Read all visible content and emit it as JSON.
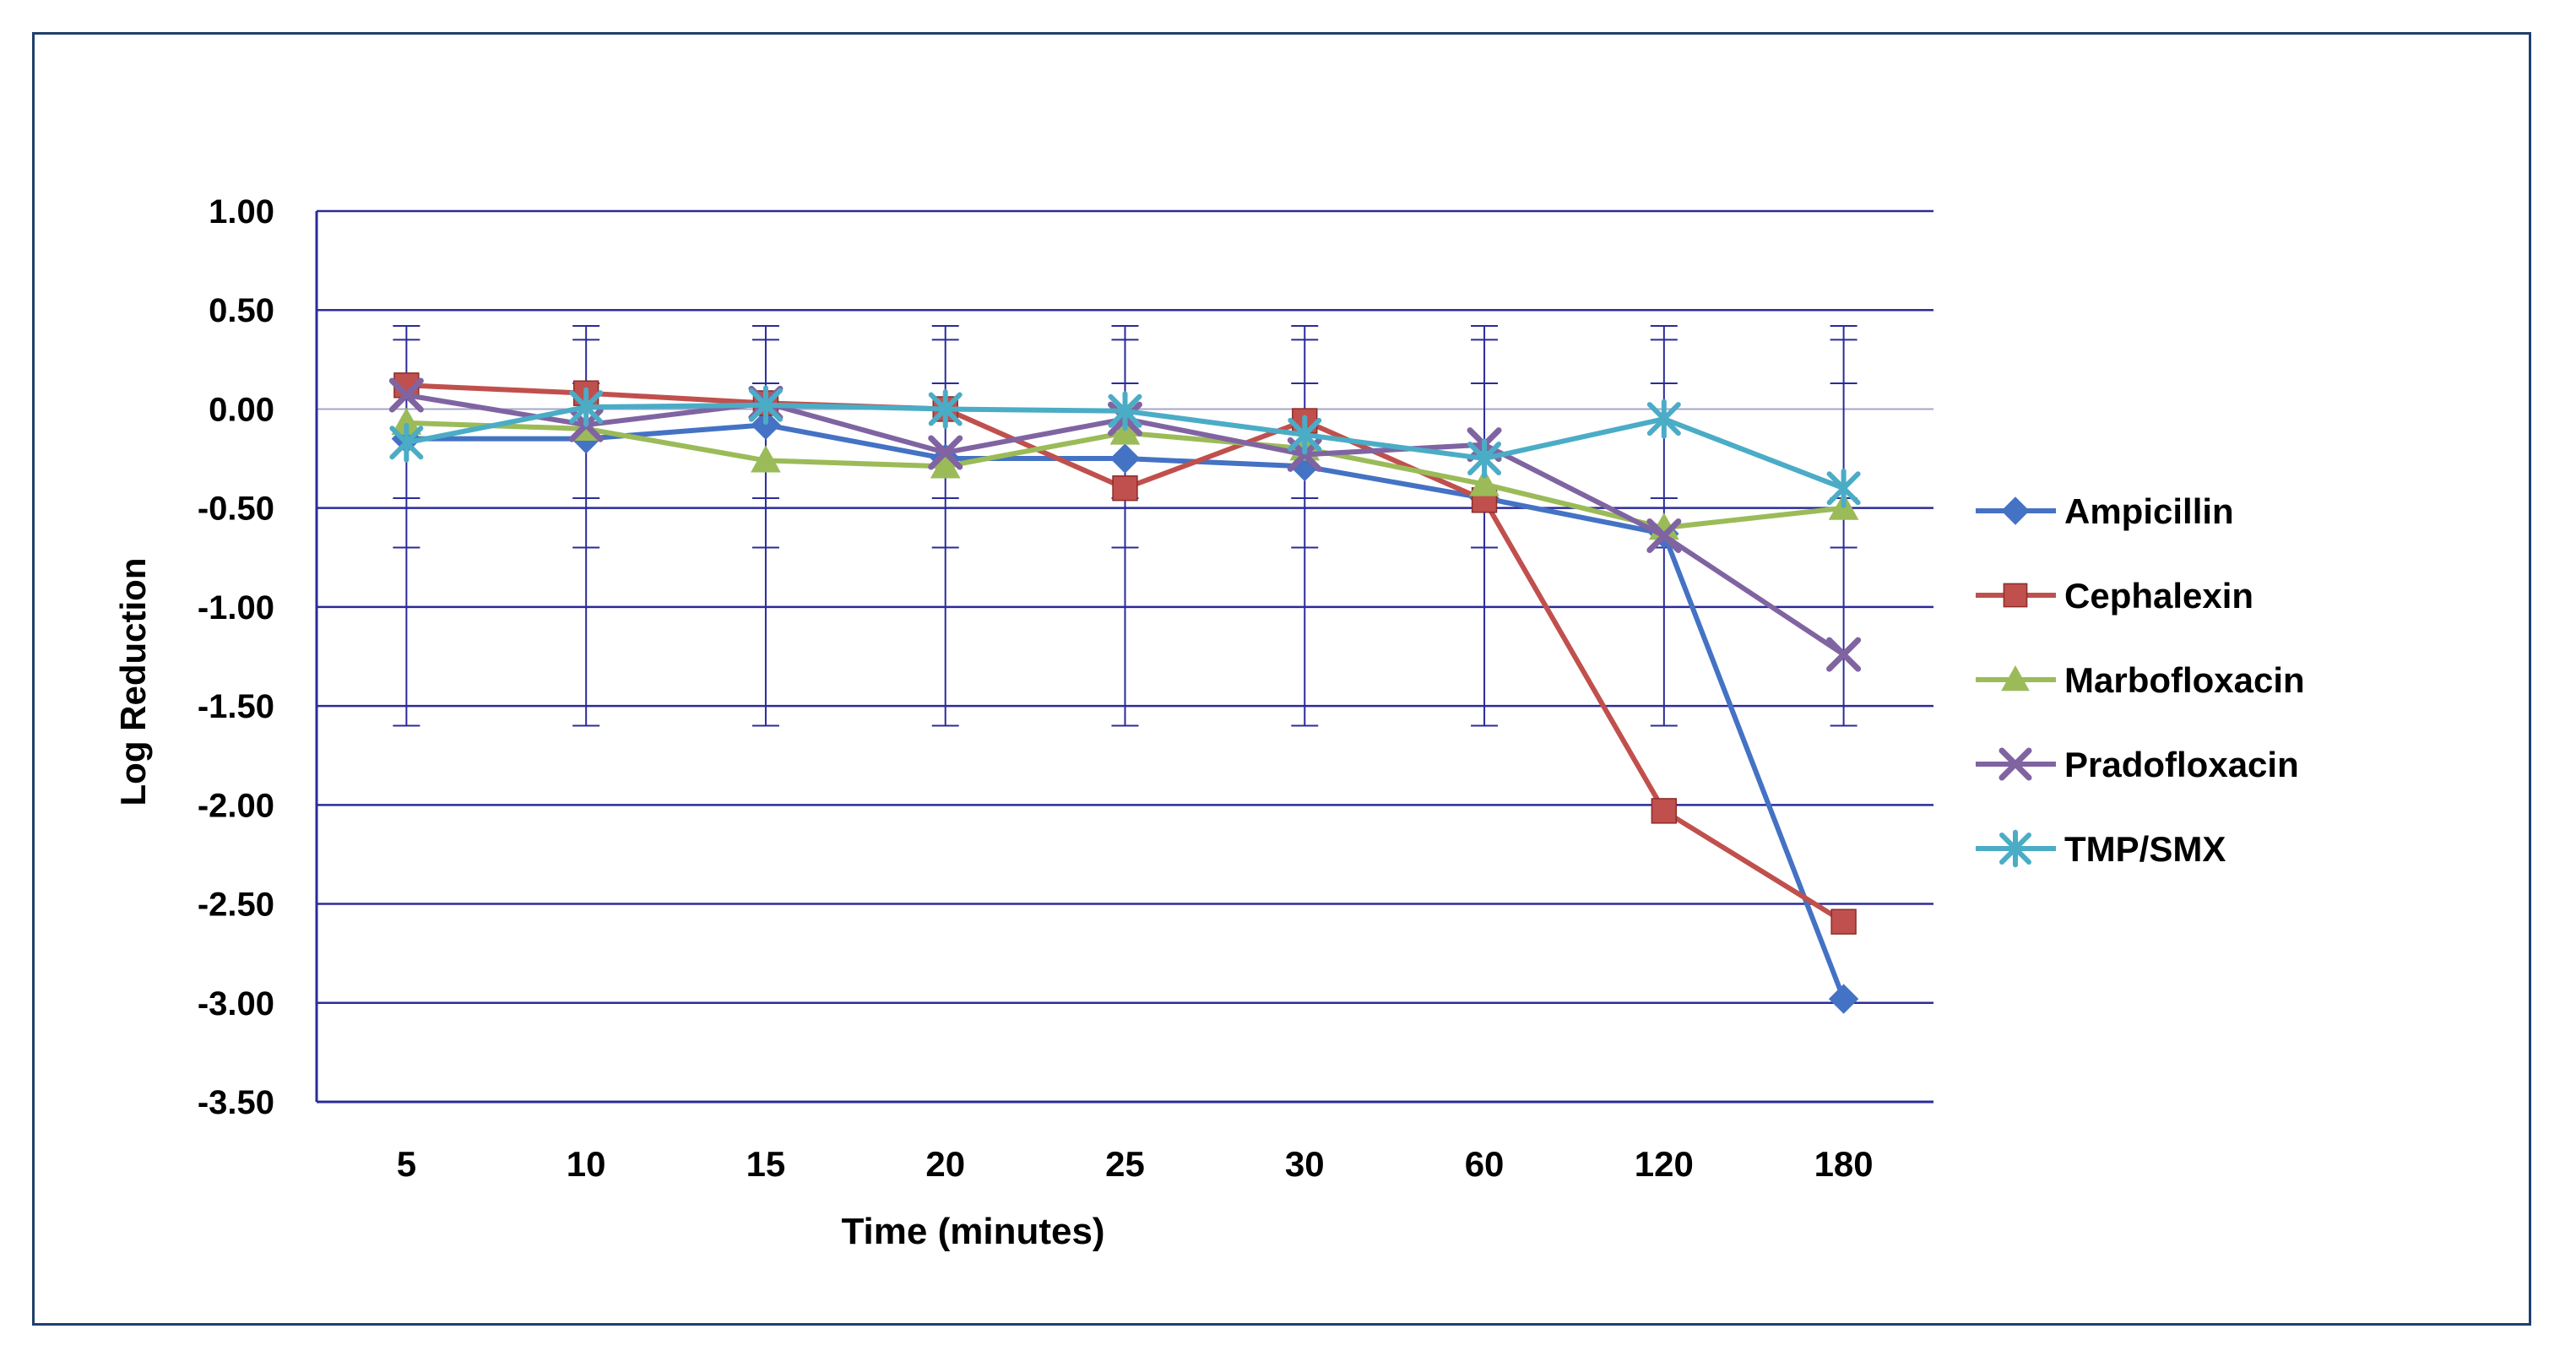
{
  "chart_data": {
    "type": "line",
    "title": "",
    "xlabel": "Time (minutes)",
    "ylabel": "Log Reduction",
    "categories": [
      "5",
      "10",
      "15",
      "20",
      "25",
      "30",
      "60",
      "120",
      "180"
    ],
    "ylim": [
      -3.5,
      1.0
    ],
    "yticks": [
      "1.00",
      "0.50",
      "0.00",
      "-0.50",
      "-1.00",
      "-1.50",
      "-2.00",
      "-2.50",
      "-3.00",
      "-3.50"
    ],
    "ytick_values": [
      1.0,
      0.5,
      0.0,
      -0.5,
      -1.0,
      -1.5,
      -2.0,
      -2.5,
      -3.0,
      -3.5
    ],
    "grid": true,
    "legend_position": "right",
    "error_bars": {
      "upper": [
        0.42,
        0.42,
        0.42,
        0.42,
        0.42,
        0.42,
        0.42,
        0.42,
        0.42
      ],
      "lower": [
        -1.6,
        -1.6,
        -1.6,
        -1.6,
        -1.6,
        -1.6,
        -1.6,
        -1.6,
        -1.6
      ],
      "inner_ticks": [
        0.35,
        0.13,
        -0.45,
        -0.7
      ]
    },
    "series": [
      {
        "name": "Ampicillin",
        "color": "#4472c4",
        "marker": "diamond",
        "values": [
          -0.15,
          -0.15,
          -0.08,
          -0.25,
          -0.25,
          -0.29,
          -0.45,
          -0.63,
          -2.98
        ]
      },
      {
        "name": "Cephalexin",
        "color": "#c0504d",
        "marker": "square",
        "values": [
          0.12,
          0.08,
          0.03,
          0.0,
          -0.4,
          -0.06,
          -0.46,
          -2.03,
          -2.59
        ]
      },
      {
        "name": "Marbofloxacin",
        "color": "#9bbb59",
        "marker": "triangle",
        "values": [
          -0.07,
          -0.1,
          -0.26,
          -0.29,
          -0.12,
          -0.2,
          -0.38,
          -0.6,
          -0.5
        ]
      },
      {
        "name": "Pradofloxacin",
        "color": "#8064a2",
        "marker": "x",
        "values": [
          0.07,
          -0.08,
          0.03,
          -0.22,
          -0.05,
          -0.23,
          -0.18,
          -0.64,
          -1.24
        ]
      },
      {
        "name": "TMP/SMX",
        "color": "#4bacc6",
        "marker": "star",
        "values": [
          -0.17,
          0.01,
          0.02,
          0.0,
          -0.01,
          -0.13,
          -0.25,
          -0.05,
          -0.4
        ]
      }
    ]
  }
}
